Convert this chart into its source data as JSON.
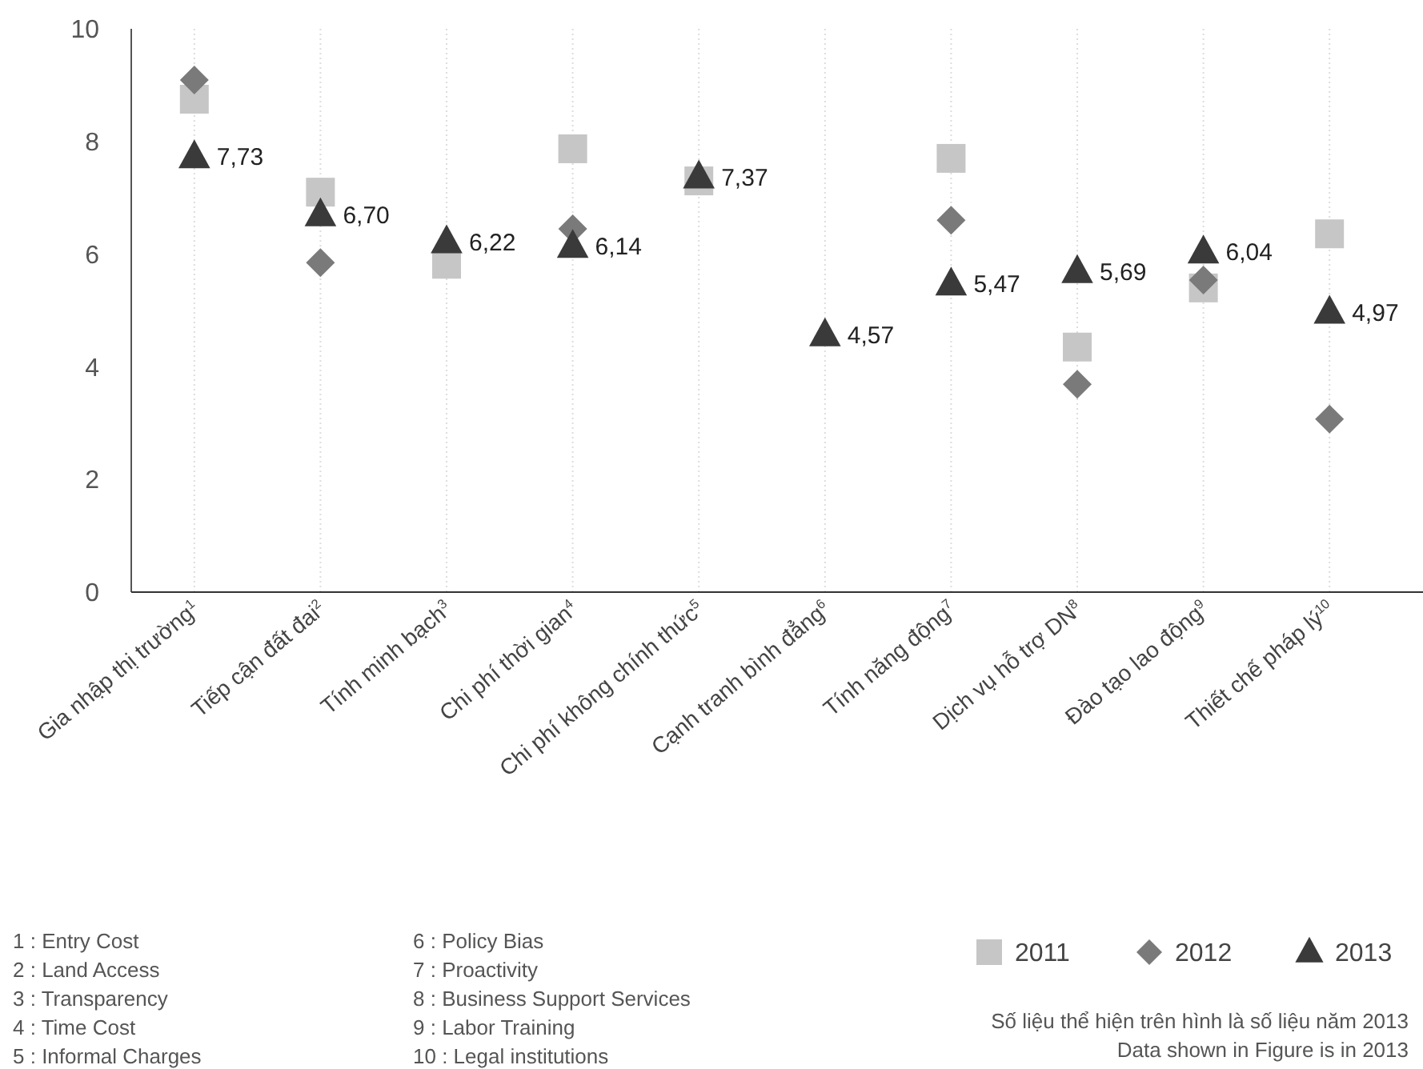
{
  "chart_data": {
    "type": "scatter",
    "categories": [
      "Gia nhập thị trường$^{1}$",
      "Tiếp cận đất đai$^{2}$",
      "Tính minh bạch$^{3}$",
      "Chi phí thời gian$^{4}$",
      "Chi phí không chính thức$^{5}$",
      "Cạnh tranh bình đẳng$^{6}$",
      "Tính năng động$^{7}$",
      "Dịch vụ hỗ trợ DN$^{8}$",
      "Đào tạo lao động$^{9}$",
      "Thiết chế pháp lý$^{10}$"
    ],
    "series": [
      {
        "name": "2011",
        "color": "#c6c6c6",
        "marker": "square",
        "values": [
          8.75,
          7.1,
          5.82,
          7.87,
          7.3,
          null,
          7.7,
          4.35,
          5.4,
          6.36
        ]
      },
      {
        "name": "2012",
        "color": "#7a7a7a",
        "marker": "diamond",
        "values": [
          9.09,
          5.85,
          null,
          6.45,
          null,
          null,
          6.6,
          3.69,
          5.54,
          3.07
        ]
      },
      {
        "name": "2013",
        "color": "#3a3a3a",
        "marker": "triangle",
        "values": [
          7.73,
          6.7,
          6.22,
          6.14,
          7.37,
          4.57,
          5.47,
          5.69,
          6.04,
          4.97
        ],
        "value_labels": [
          "7,73",
          "6,70",
          "6,22",
          "6,14",
          "7,37",
          "4,57",
          "5,47",
          "5,69",
          "6,04",
          "4,97"
        ]
      }
    ],
    "ylim": [
      0,
      10
    ],
    "yticks": [
      0,
      2,
      4,
      6,
      8,
      10
    ],
    "grid": "x",
    "legend": "bottom right",
    "annotations": [
      "1 : Entry Cost",
      "2 : Land Access",
      "3 : Transparency",
      "4 : Time Cost",
      "5 : Informal Charges",
      "6 : Policy Bias",
      "7 : Proactivity",
      "8 : Business Support Services",
      "9 : Labor Training",
      "10 : Legal institutions",
      "Số liệu thể hiện trên hình là số liệu năm 2013",
      "Data shown in Figure is in 2013"
    ]
  }
}
